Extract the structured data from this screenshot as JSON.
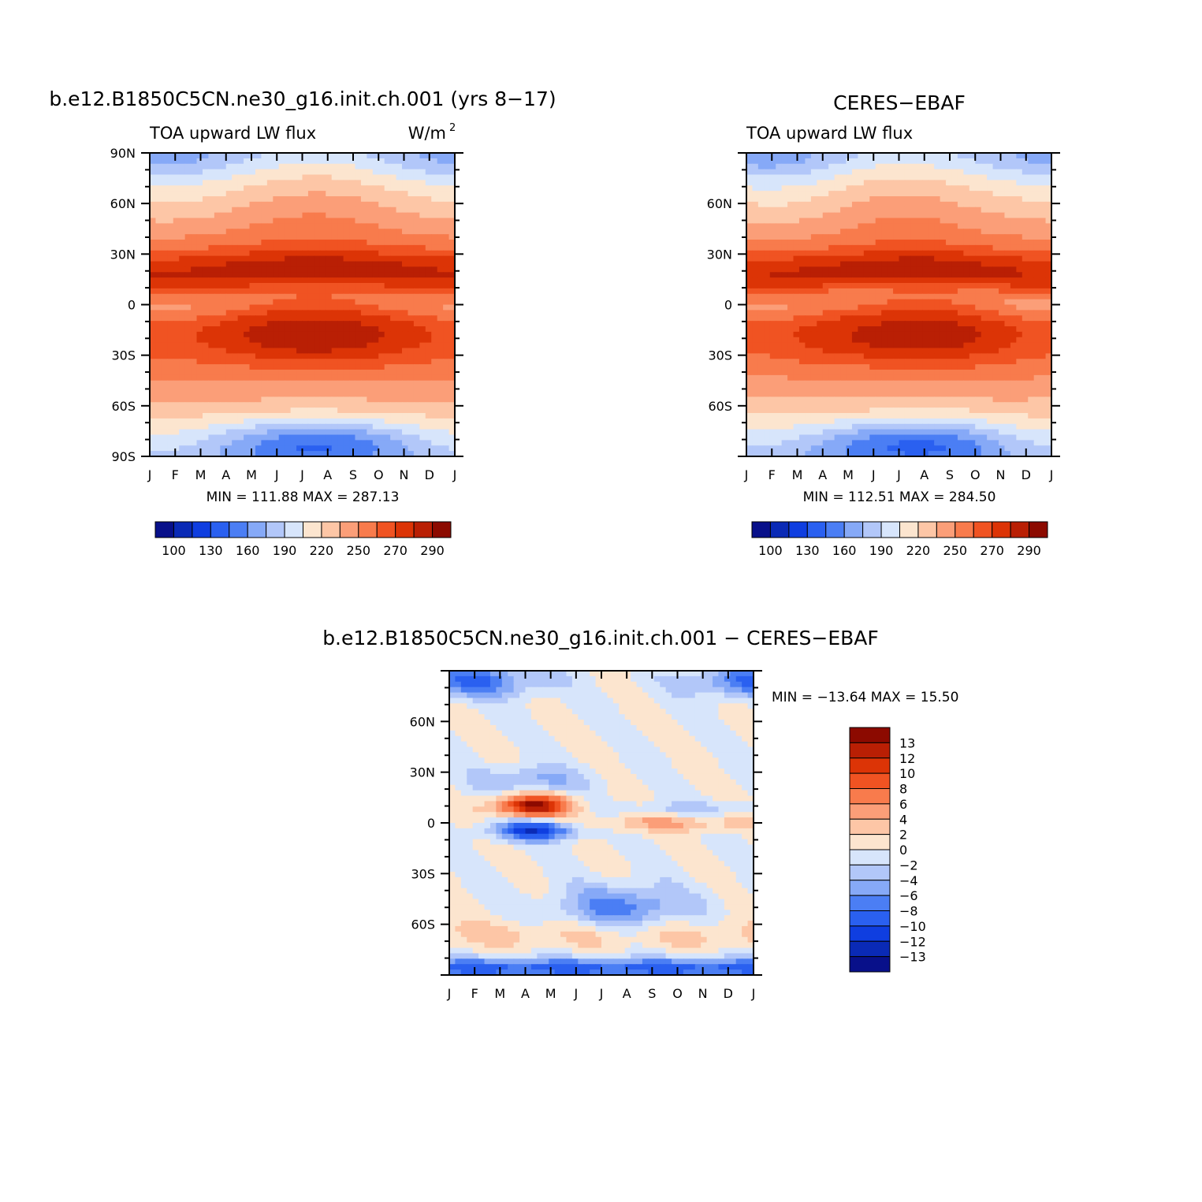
{
  "months": [
    "J",
    "F",
    "M",
    "A",
    "M",
    "J",
    "J",
    "A",
    "S",
    "O",
    "N",
    "D",
    "J"
  ],
  "palette": [
    "#08108a",
    "#0a2ab6",
    "#0f3ee0",
    "#2a60f0",
    "#4b7ef4",
    "#86a9f7",
    "#b2c7f9",
    "#d7e5fb",
    "#fce5cf",
    "#fdc6a6",
    "#fb9e78",
    "#f87b4c",
    "#f05322",
    "#dc3406",
    "#b91f04",
    "#8c0a00"
  ],
  "top_colorbar_labels": [
    "100",
    "130",
    "160",
    "190",
    "220",
    "250",
    "270",
    "290"
  ],
  "diff_colorbar_labels": [
    "13",
    "12",
    "10",
    "8",
    "6",
    "4",
    "2",
    "0",
    "−2",
    "−4",
    "−6",
    "−8",
    "−10",
    "−12",
    "−13"
  ],
  "diff_colorbar_levels": [
    -13,
    -12,
    -10,
    -8,
    -6,
    -4,
    -2,
    0,
    2,
    4,
    6,
    8,
    10,
    12,
    13
  ],
  "chart_data": [
    {
      "type": "heatmap",
      "title": "b.e12.B1850C5CN.ne30_g16.init.ch.001 (yrs 8−17)",
      "subtitle_left": "TOA upward LW flux",
      "units": "W/m",
      "units_exp": "2",
      "x": [
        "J",
        "F",
        "M",
        "A",
        "M",
        "J",
        "J",
        "A",
        "S",
        "O",
        "N",
        "D",
        "J"
      ],
      "y_ticks": [
        "90S",
        "60S",
        "30S",
        "0",
        "30N",
        "60N",
        "90N"
      ],
      "ylim": [
        -90,
        90
      ],
      "stats": "MIN = 111.88  MAX = 287.13",
      "min": 111.88,
      "max": 287.13
    },
    {
      "type": "heatmap",
      "title": "CERES−EBAF",
      "subtitle_left": "TOA upward LW flux",
      "x": [
        "J",
        "F",
        "M",
        "A",
        "M",
        "J",
        "J",
        "A",
        "S",
        "O",
        "N",
        "D",
        "J"
      ],
      "y_ticks": [
        "60S",
        "30S",
        "0",
        "30N",
        "60N"
      ],
      "ylim": [
        -90,
        90
      ],
      "stats": "MIN = 112.51  MAX = 284.50",
      "min": 112.51,
      "max": 284.5
    },
    {
      "type": "heatmap",
      "title": "b.e12.B1850C5CN.ne30_g16.init.ch.001 − CERES−EBAF",
      "x": [
        "J",
        "F",
        "M",
        "A",
        "M",
        "J",
        "J",
        "A",
        "S",
        "O",
        "N",
        "D",
        "J"
      ],
      "y_ticks": [
        "60S",
        "30S",
        "0",
        "30N",
        "60N"
      ],
      "ylim": [
        -90,
        90
      ],
      "stats": "MIN = −13.64  MAX =   15.50",
      "min": -13.64,
      "max": 15.5
    }
  ]
}
